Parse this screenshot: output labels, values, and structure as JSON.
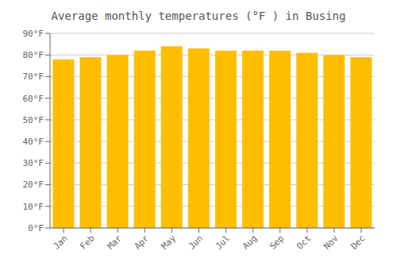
{
  "chart_data": {
    "type": "bar",
    "title": "Average monthly temperatures (°F ) in Busing",
    "categories": [
      "Jan",
      "Feb",
      "Mar",
      "Apr",
      "May",
      "Jun",
      "Jul",
      "Aug",
      "Sep",
      "Oct",
      "Nov",
      "Dec"
    ],
    "values": [
      78,
      79,
      80,
      82,
      84,
      83,
      82,
      82,
      82,
      81,
      80,
      79
    ],
    "color": "#FFBE00",
    "ylim": [
      0,
      90
    ],
    "yticks": [
      {
        "value": 0,
        "label": "0°F"
      },
      {
        "value": 10,
        "label": "10°F"
      },
      {
        "value": 20,
        "label": "20°F"
      },
      {
        "value": 30,
        "label": "30°F"
      },
      {
        "value": 40,
        "label": "40°F"
      },
      {
        "value": 50,
        "label": "50°F"
      },
      {
        "value": 60,
        "label": "60°F"
      },
      {
        "value": 70,
        "label": "70°F"
      },
      {
        "value": 80,
        "label": "80°F"
      },
      {
        "value": 90,
        "label": "90°F"
      }
    ],
    "grid": true
  }
}
